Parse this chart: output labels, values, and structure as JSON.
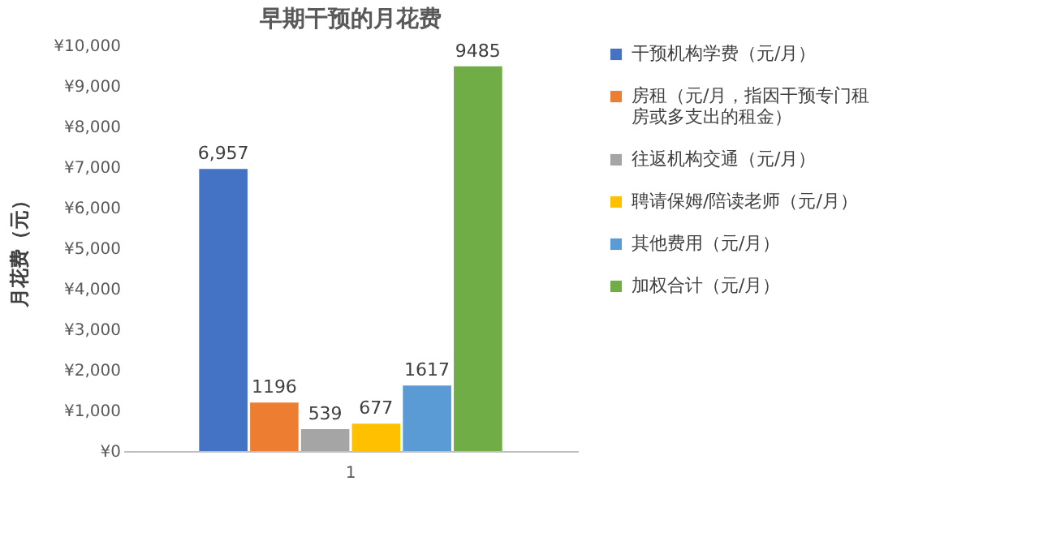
{
  "chart_data": {
    "type": "bar",
    "title": "早期干预的月花费",
    "ylabel": "月花费（元）",
    "categories": [
      "1"
    ],
    "series": [
      {
        "name": "干预机构学费（元/月）",
        "color": "#4472c4",
        "values": [
          6957
        ],
        "value_labels": [
          "6,957"
        ]
      },
      {
        "name": "房租（元/月，指因干预专门租房或多支出的租金）",
        "color": "#ed7d31",
        "values": [
          1196
        ],
        "value_labels": [
          "1196"
        ]
      },
      {
        "name": "往返机构交通（元/月）",
        "color": "#a5a5a5",
        "values": [
          539
        ],
        "value_labels": [
          "539"
        ]
      },
      {
        "name": "聘请保姆/陪读老师（元/月）",
        "color": "#ffc000",
        "values": [
          677
        ],
        "value_labels": [
          "677"
        ]
      },
      {
        "name": "其他费用（元/月）",
        "color": "#5b9bd5",
        "values": [
          1617
        ],
        "value_labels": [
          "1617"
        ]
      },
      {
        "name": "加权合计（元/月）",
        "color": "#70ad47",
        "values": [
          9485
        ],
        "value_labels": [
          "9485"
        ]
      }
    ],
    "ylim": [
      0,
      10000
    ],
    "yticks": [
      {
        "value": 0,
        "label": "¥0"
      },
      {
        "value": 1000,
        "label": "¥1,000"
      },
      {
        "value": 2000,
        "label": "¥2,000"
      },
      {
        "value": 3000,
        "label": "¥3,000"
      },
      {
        "value": 4000,
        "label": "¥4,000"
      },
      {
        "value": 5000,
        "label": "¥5,000"
      },
      {
        "value": 6000,
        "label": "¥6,000"
      },
      {
        "value": 7000,
        "label": "¥7,000"
      },
      {
        "value": 8000,
        "label": "¥8,000"
      },
      {
        "value": 9000,
        "label": "¥9,000"
      },
      {
        "value": 10000,
        "label": "¥10,000"
      }
    ],
    "legend": "right"
  }
}
